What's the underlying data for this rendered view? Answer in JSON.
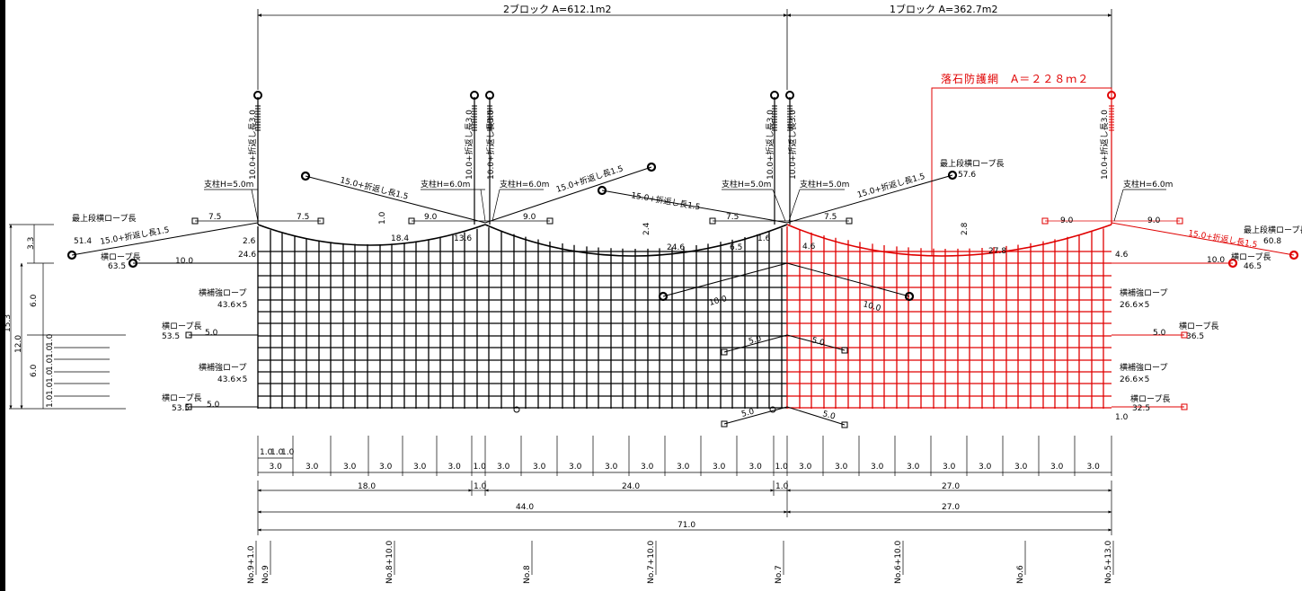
{
  "colors": {
    "ink": "#000000",
    "highlight": "#e00000"
  },
  "header": {
    "block2": "2ブロック A=612.1m2",
    "block1": "1ブロック A=362.7m2",
    "protection_net": "落石防護網　A＝２２８ｍ２"
  },
  "posts": {
    "h50": "支柱H=5.0m",
    "h60": "支柱H=6.0m"
  },
  "rope_texts": {
    "vertical": "10.0+折返し長3.0",
    "diagonal": "15.0+折返し長1.5",
    "top_rope_length": "最上段横ロープ長",
    "rope_length": "横ロープ長",
    "reinforce": "横補強ロープ"
  },
  "values": {
    "v_51_4": "51.4",
    "v_63_5": "63.5",
    "v_10_0": "10.0",
    "v_7_5": "7.5",
    "v_9_0": "9.0",
    "v_2_6": "2.6",
    "v_24_6": "24.6",
    "v_18_4": "18.4",
    "v_13_6": "13.6",
    "v_6_5": "6.5",
    "v_2_4": "2.4",
    "v_2_8": "2.8",
    "v_4_6": "4.6",
    "v_27_8": "27.8",
    "v_57_6": "57.6",
    "v_60_8": "60.8",
    "v_46_5": "46.5",
    "v_43_6x5": "43.6×5",
    "v_26_6x5": "26.6×5",
    "v_53_5": "53.5",
    "v_5_0": "5.0",
    "v_36_5": "36.5",
    "v_32_5": "32.5",
    "v_1_0": "1.0"
  },
  "left_dims": {
    "d15_3": "15.3",
    "d12_0": "12.0",
    "d3_3": "3.3",
    "d6_0": "6.0",
    "d1_0": "1.0"
  },
  "spacing": {
    "s3_0": "3.0",
    "s1_0": "1.0"
  },
  "bottom_dims": {
    "d18_0": "18.0",
    "d24_0": "24.0",
    "d27_0": "27.0",
    "d1_0": "1.0",
    "d44_0": "44.0",
    "d71_0": "71.0"
  },
  "stations": [
    "No.9+1.0",
    "No.9",
    "No.8+10.0",
    "No.8",
    "No.7+10.0",
    "No.7",
    "No.6+10.0",
    "No.6",
    "No.5+13.0"
  ]
}
